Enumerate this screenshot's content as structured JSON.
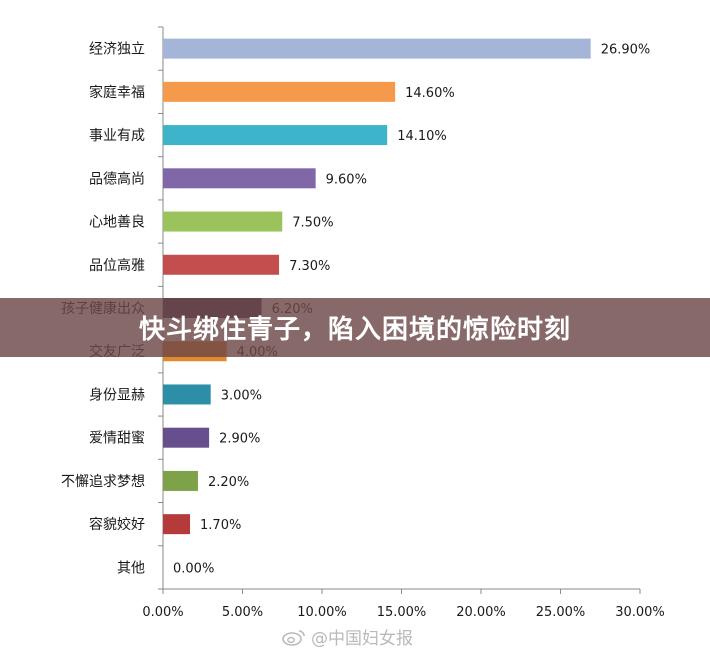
{
  "banner": {
    "text": "快斗绑住青子，陷入困境的惊险时刻"
  },
  "watermark": {
    "text": "@中国妇女报",
    "icon": "weibo-icon"
  },
  "chart_data": {
    "type": "bar",
    "orientation": "horizontal",
    "categories": [
      "经济独立",
      "家庭幸福",
      "事业有成",
      "品德高尚",
      "心地善良",
      "品位高雅",
      "孩子健康出众",
      "交友广泛",
      "身份显赫",
      "爱情甜蜜",
      "不懈追求梦想",
      "容貌姣好",
      "其他"
    ],
    "values": [
      26.9,
      14.6,
      14.1,
      9.6,
      7.5,
      7.3,
      6.2,
      4.0,
      3.0,
      2.9,
      2.2,
      1.7,
      0.0
    ],
    "value_labels": [
      "26.90%",
      "14.60%",
      "14.10%",
      "9.60%",
      "7.50%",
      "7.30%",
      "6.20%",
      "4.00%",
      "3.00%",
      "2.90%",
      "2.20%",
      "1.70%",
      "0.00%"
    ],
    "colors": [
      "#A5B5D8",
      "#F59A4A",
      "#3EB4CB",
      "#8068A8",
      "#9BC35B",
      "#C24E4E",
      "#3D3660",
      "#E08A2E",
      "#2C8FA7",
      "#674F8E",
      "#7DA24A",
      "#B53A3A",
      "#9A9A9A"
    ],
    "xlim": [
      0,
      30
    ],
    "xticks": [
      "0.00%",
      "5.00%",
      "10.00%",
      "15.00%",
      "20.00%",
      "25.00%",
      "30.00%"
    ],
    "grid": false,
    "title": "",
    "xlabel": "",
    "ylabel": ""
  }
}
